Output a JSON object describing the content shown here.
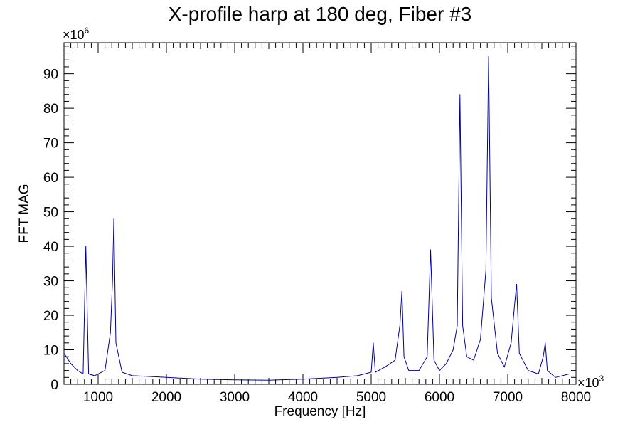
{
  "chart_data": {
    "type": "line",
    "title": "X-profile harp at 180 deg, Fiber #3",
    "xlabel": "Frequency [Hz]",
    "ylabel": "FFT MAG",
    "x_multiplier_label": "×10",
    "x_multiplier_exp": "3",
    "y_multiplier_label": "×10",
    "y_multiplier_exp": "6",
    "xlim": [
      500,
      8000
    ],
    "ylim": [
      0,
      99
    ],
    "x_ticks": [
      1000,
      2000,
      3000,
      4000,
      5000,
      6000,
      7000,
      8000
    ],
    "y_ticks": [
      0,
      10,
      20,
      30,
      40,
      50,
      60,
      70,
      80,
      90
    ],
    "grid": false,
    "line_color": "#000099",
    "series": [
      {
        "x": [
          500,
          600,
          700,
          780,
          820,
          860,
          950,
          1100,
          1180,
          1210,
          1230,
          1260,
          1350,
          1500,
          1700,
          2000,
          2500,
          3000,
          3500,
          4000,
          4500,
          4800,
          5000,
          5030,
          5060,
          5200,
          5350,
          5420,
          5450,
          5480,
          5550,
          5700,
          5820,
          5870,
          5920,
          6000,
          6100,
          6200,
          6260,
          6300,
          6340,
          6400,
          6500,
          6600,
          6680,
          6720,
          6760,
          6850,
          6950,
          7050,
          7100,
          7130,
          7170,
          7300,
          7450,
          7520,
          7550,
          7580,
          7700,
          7900,
          8000
        ],
        "y": [
          9,
          6,
          4,
          3,
          40,
          3,
          2.5,
          4,
          15,
          30,
          48,
          12,
          3.5,
          2.5,
          2.3,
          2,
          1.5,
          1.3,
          1.2,
          1.5,
          2,
          2.5,
          3.5,
          12,
          3.5,
          5,
          7,
          17,
          27,
          8,
          4,
          4,
          8,
          39,
          7,
          4,
          6,
          10,
          17,
          84,
          17,
          8,
          7,
          13,
          33,
          95,
          25,
          9,
          5,
          12,
          23,
          29,
          9,
          4,
          3,
          8,
          12,
          4,
          2,
          3,
          3
        ]
      }
    ]
  }
}
